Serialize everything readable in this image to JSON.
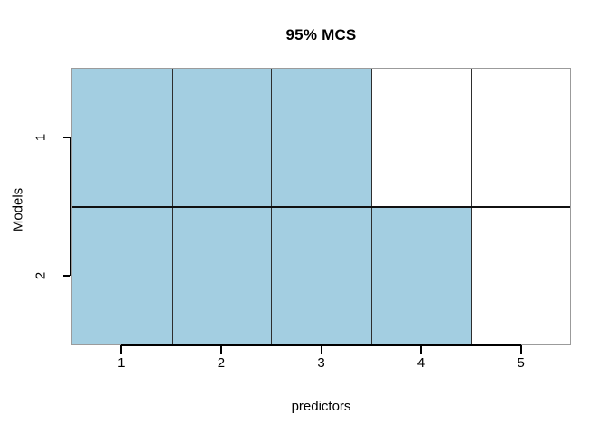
{
  "chart_data": {
    "type": "heatmap",
    "title": "95% MCS",
    "xlabel": "predictors",
    "ylabel": "Models",
    "x_ticks": [
      "1",
      "2",
      "3",
      "4",
      "5"
    ],
    "y_ticks": [
      "1",
      "2"
    ],
    "xlim": [
      0.5,
      5.5
    ],
    "ylim": [
      0.5,
      2.5
    ],
    "y_axis_top_to_bottom": true,
    "cell_matrix": [
      [
        1,
        1,
        1,
        0,
        0
      ],
      [
        1,
        1,
        1,
        1,
        0
      ]
    ],
    "grid": "on",
    "legend_position": "none",
    "colors": {
      "included_fill": "#A3CEE1",
      "excluded_fill": "#FFFFFF",
      "grid_line": "#2E2E2E",
      "row_divider": "#111111",
      "box_border": "#9B9B9B",
      "axis_line": "#000000",
      "text": "#000000"
    }
  }
}
